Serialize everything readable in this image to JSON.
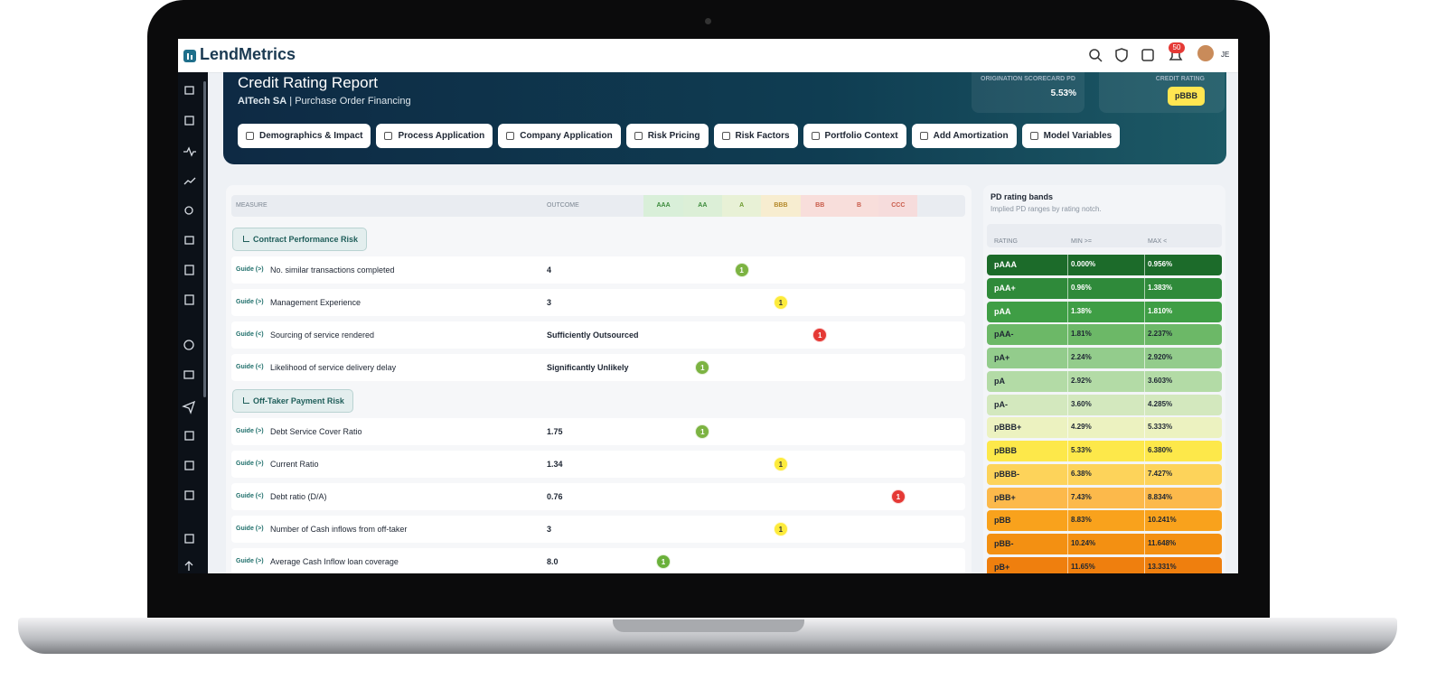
{
  "app": {
    "brand": "LendMetrics",
    "notification_count": "50",
    "user_initials": "JE"
  },
  "header": {
    "title": "Credit Rating Report",
    "company": "AITech SA",
    "product": "Purchase Order Financing",
    "scorecard_label": "ORIGINATION SCORECARD PD",
    "scorecard_value": "5.53%",
    "rating_label": "CREDIT RATING",
    "rating_value": "pBBB"
  },
  "tabs": [
    "Demographics & Impact",
    "Process Application",
    "Company Application",
    "Risk Pricing",
    "Risk Factors",
    "Portfolio Context",
    "Add Amortization",
    "Model Variables"
  ],
  "table": {
    "measure_header": "MEASURE",
    "outcome_header": "OUTCOME",
    "ratings": [
      "AAA",
      "AA",
      "A",
      "BBB",
      "BB",
      "B",
      "CCC"
    ],
    "groups": [
      {
        "name": "Contract Performance Risk",
        "rows": [
          {
            "guide": "Guide (>)",
            "measure": "No. similar transactions completed",
            "outcome": "4",
            "rating": "A",
            "score": 1
          },
          {
            "guide": "Guide (>)",
            "measure": "Management Experience",
            "outcome": "3",
            "rating": "BBB",
            "score": 1
          },
          {
            "guide": "Guide (<)",
            "measure": "Sourcing of service rendered",
            "outcome": "Sufficiently Outsourced",
            "rating": "BB",
            "score": 1
          },
          {
            "guide": "Guide (<)",
            "measure": "Likelihood of service delivery delay",
            "outcome": "Significantly Unlikely",
            "rating": "AA",
            "score": 1
          }
        ]
      },
      {
        "name": "Off-Taker Payment Risk",
        "rows": [
          {
            "guide": "Guide (>)",
            "measure": "Debt Service Cover Ratio",
            "outcome": "1.75",
            "rating": "AA",
            "score": 1
          },
          {
            "guide": "Guide (>)",
            "measure": "Current Ratio",
            "outcome": "1.34",
            "rating": "BBB",
            "score": 1
          },
          {
            "guide": "Guide (<)",
            "measure": "Debt ratio (D/A)",
            "outcome": "0.76",
            "rating": "CCC",
            "score": 1
          },
          {
            "guide": "Guide (>)",
            "measure": "Number of Cash inflows from off-taker",
            "outcome": "3",
            "rating": "BBB",
            "score": 1
          },
          {
            "guide": "Guide (>)",
            "measure": "Average Cash Inflow loan coverage",
            "outcome": "8.0",
            "rating": "AAA",
            "score": 1
          }
        ]
      }
    ]
  },
  "bands": {
    "title": "PD rating bands",
    "subtitle": "Implied PD ranges by rating notch.",
    "columns": [
      "RATING",
      "MIN >=",
      "MAX <"
    ],
    "rows": [
      [
        "pAAA",
        "0.000%",
        "0.956%"
      ],
      [
        "pAA+",
        "0.96%",
        "1.383%"
      ],
      [
        "pAA",
        "1.38%",
        "1.810%"
      ],
      [
        "pAA-",
        "1.81%",
        "2.237%"
      ],
      [
        "pA+",
        "2.24%",
        "2.920%"
      ],
      [
        "pA",
        "2.92%",
        "3.603%"
      ],
      [
        "pA-",
        "3.60%",
        "4.285%"
      ],
      [
        "pBBB+",
        "4.29%",
        "5.333%"
      ],
      [
        "pBBB",
        "5.33%",
        "6.380%"
      ],
      [
        "pBBB-",
        "6.38%",
        "7.427%"
      ],
      [
        "pBB+",
        "7.43%",
        "8.834%"
      ],
      [
        "pBB",
        "8.83%",
        "10.241%"
      ],
      [
        "pBB-",
        "10.24%",
        "11.648%"
      ],
      [
        "pB+",
        "11.65%",
        "13.331%"
      ]
    ]
  }
}
